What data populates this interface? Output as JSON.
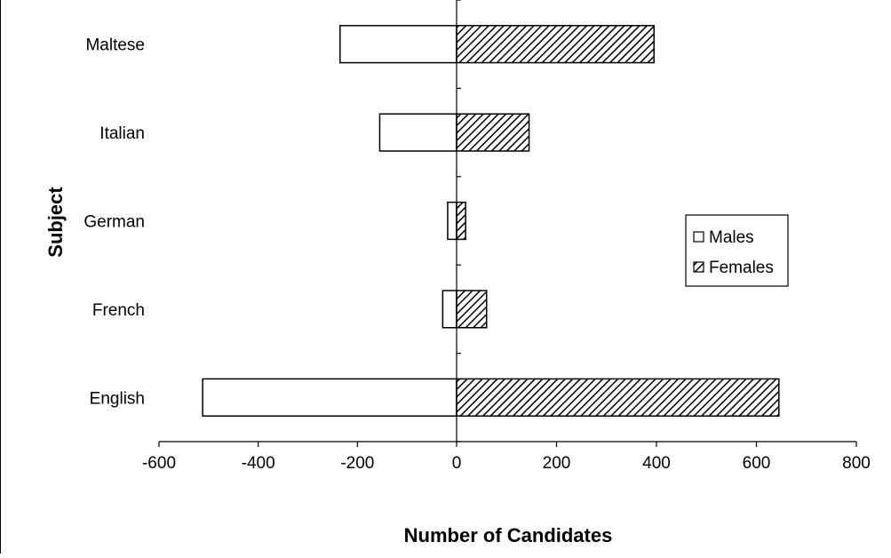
{
  "chart_data": {
    "type": "bar",
    "orientation": "horizontal",
    "title": "",
    "xlabel": "Number of Candidates",
    "ylabel": "Subject",
    "categories": [
      "Maltese",
      "Italian",
      "German",
      "French",
      "English"
    ],
    "series": [
      {
        "name": "Males",
        "values": [
          -235,
          -155,
          -18,
          -28,
          -512
        ],
        "fill": "#ffffff",
        "pattern": "none"
      },
      {
        "name": "Females",
        "values": [
          395,
          145,
          18,
          60,
          645
        ],
        "fill": "#ffffff",
        "pattern": "diagonal-hatch"
      }
    ],
    "xlim": [
      -600,
      800
    ],
    "xticks": [
      -600,
      -400,
      -200,
      0,
      200,
      400,
      600,
      800
    ],
    "grid": false,
    "legend": {
      "position": "right",
      "entries": [
        "Males",
        "Females"
      ]
    },
    "colors": {
      "axis": "#000000",
      "bar_outline": "#000000",
      "hatch": "#000000",
      "background": "#ffffff"
    }
  }
}
